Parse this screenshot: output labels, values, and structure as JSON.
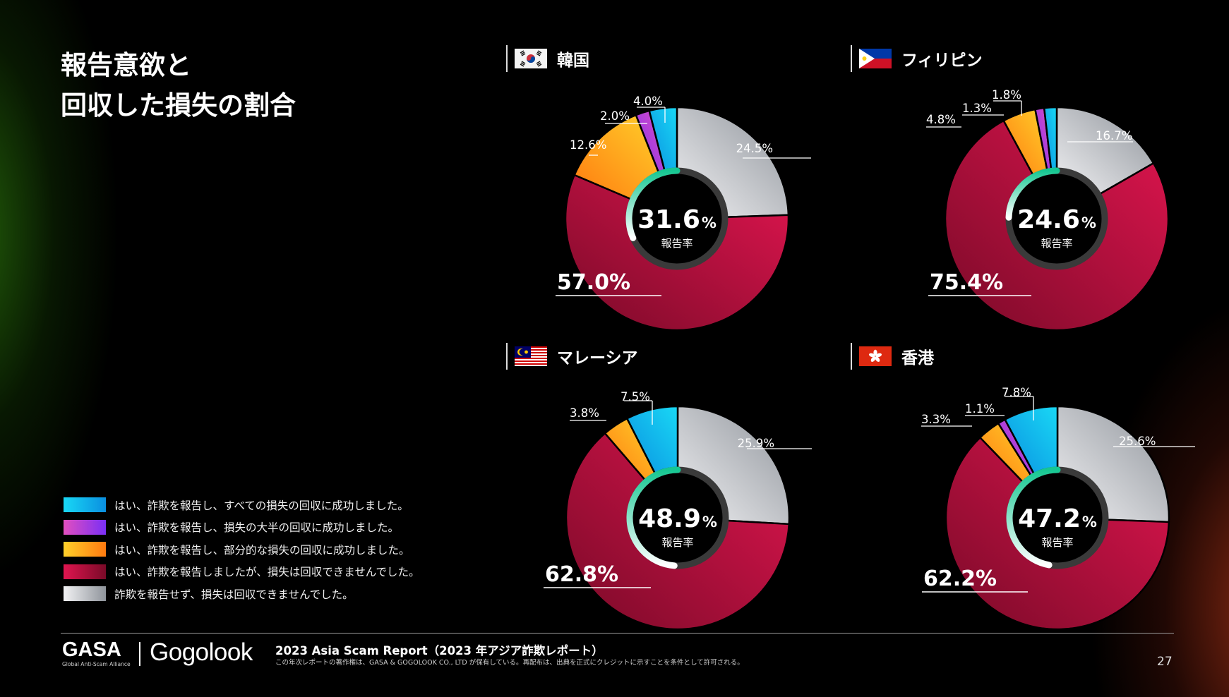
{
  "title_lines": [
    "報告意欲と",
    "回収した損失の割合"
  ],
  "legend": [
    {
      "label": "はい、詐欺を報告し、すべての損失の回収に成功しました。",
      "color_start": "#19d8f5",
      "color_end": "#0a8fe0"
    },
    {
      "label": "はい、詐欺を報告し、損失の大半の回収に成功しました。",
      "color_start": "#e24fbf",
      "color_end": "#7a2ff5"
    },
    {
      "label": "はい、詐欺を報告し、部分的な損失の回収に成功しました。",
      "color_start": "#ffd02a",
      "color_end": "#ff7a10"
    },
    {
      "label": "はい、詐欺を報告しましたが、損失は回収できませんでした。",
      "color_start": "#e0154f",
      "color_end": "#7a0a28"
    },
    {
      "label": "詐欺を報告せず、損失は回収できませんでした。",
      "color_start": "#f2f2f4",
      "color_end": "#8f949b"
    }
  ],
  "chart_data": [
    {
      "type": "pie",
      "country": "韓国",
      "flag": "south-korea",
      "center_value": "31.6",
      "center_unit": "%",
      "center_label": "報告率",
      "report_rate": 31.6,
      "slices": [
        {
          "category": "not_reported",
          "value": 24.5,
          "label": "24.5%"
        },
        {
          "category": "not_recovered",
          "value": 57.0,
          "label": "57.0%"
        },
        {
          "category": "partial",
          "value": 12.6,
          "label": "12.6%"
        },
        {
          "category": "most",
          "value": 2.0,
          "label": "2.0%"
        },
        {
          "category": "all",
          "value": 4.0,
          "label": "4.0%"
        }
      ]
    },
    {
      "type": "pie",
      "country": "フィリピン",
      "flag": "philippines",
      "center_value": "24.6",
      "center_unit": "%",
      "center_label": "報告率",
      "report_rate": 24.6,
      "slices": [
        {
          "category": "not_reported",
          "value": 16.7,
          "label": "16.7%"
        },
        {
          "category": "not_recovered",
          "value": 75.4,
          "label": "75.4%"
        },
        {
          "category": "partial",
          "value": 4.8,
          "label": "4.8%"
        },
        {
          "category": "most",
          "value": 1.3,
          "label": "1.3%"
        },
        {
          "category": "all",
          "value": 1.8,
          "label": "1.8%"
        }
      ]
    },
    {
      "type": "pie",
      "country": "マレーシア",
      "flag": "malaysia",
      "center_value": "48.9",
      "center_unit": "%",
      "center_label": "報告率",
      "report_rate": 48.9,
      "slices": [
        {
          "category": "not_reported",
          "value": 25.9,
          "label": "25.9%"
        },
        {
          "category": "not_recovered",
          "value": 62.8,
          "label": "62.8%"
        },
        {
          "category": "partial",
          "value": 3.8,
          "label": "3.8%"
        },
        {
          "category": "all",
          "value": 7.5,
          "label": "7.5%"
        }
      ]
    },
    {
      "type": "pie",
      "country": "香港",
      "flag": "hong-kong",
      "center_value": "47.2",
      "center_unit": "%",
      "center_label": "報告率",
      "report_rate": 47.2,
      "slices": [
        {
          "category": "not_reported",
          "value": 25.6,
          "label": "25.6%"
        },
        {
          "category": "not_recovered",
          "value": 62.2,
          "label": "62.2%"
        },
        {
          "category": "partial",
          "value": 3.3,
          "label": "3.3%"
        },
        {
          "category": "most",
          "value": 1.1,
          "label": "1.1%"
        },
        {
          "category": "all",
          "value": 7.8,
          "label": "7.8%"
        }
      ]
    }
  ],
  "footer": {
    "gasa_logo": "GASA",
    "gasa_tagline": "Global Anti-Scam Alliance",
    "partner_logo": "Gogolook",
    "report_title": "2023 Asia Scam Report（2023 年アジア詐欺レポート）",
    "copyright": "この年次レポートの著作権は、GASA & GOGOLOOK CO., LTD が保有している。再配布は、出典を正式にクレジットに示すことを条件として許可される。",
    "page_number": "27"
  }
}
